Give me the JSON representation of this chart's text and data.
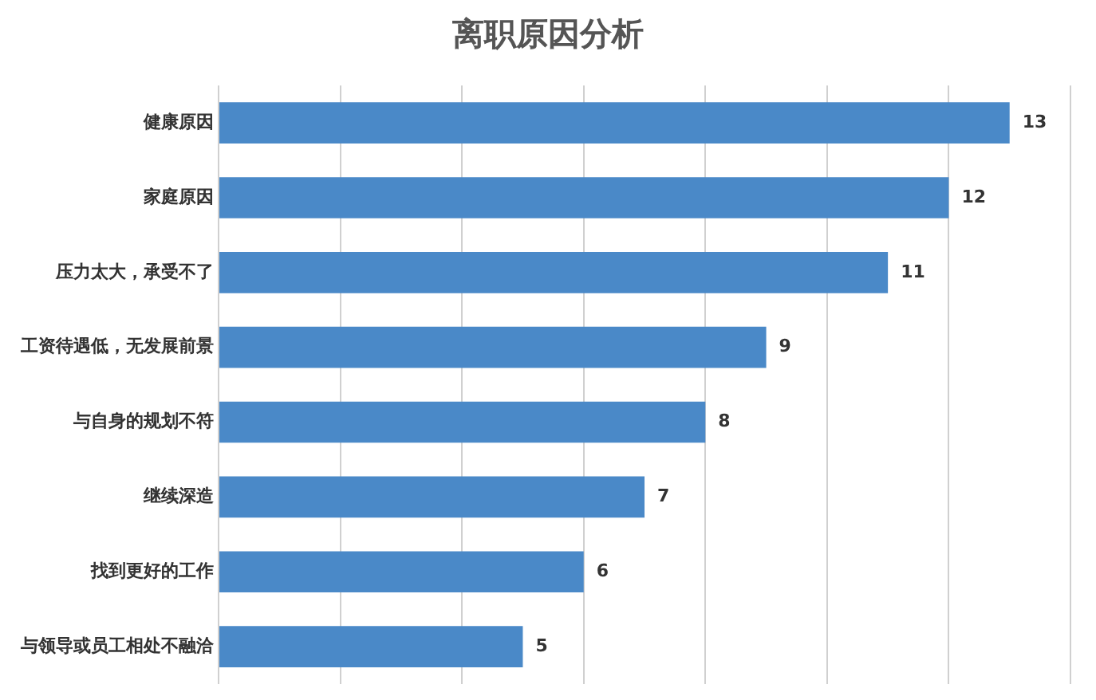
{
  "chart_data": {
    "type": "bar",
    "orientation": "horizontal",
    "title": "离职原因分析",
    "categories": [
      "健康原因",
      "家庭原因",
      "压力太大，承受不了",
      "工资待遇低，无发展前景",
      "与自身的规划不符",
      "继续深造",
      "找到更好的工作",
      "与领导或员工相处不融洽"
    ],
    "values": [
      13,
      12,
      11,
      9,
      8,
      7,
      6,
      5
    ],
    "color": "#4a89c8",
    "xlim": [
      0,
      14
    ],
    "xticks": [
      {
        "value": 0,
        "label": null
      },
      {
        "value": 2,
        "label": null
      },
      {
        "value": 4,
        "label": null
      },
      {
        "value": 6,
        "label": null
      },
      {
        "value": 8,
        "label": null
      },
      {
        "value": 10,
        "label": null
      },
      {
        "value": 12,
        "label": null
      },
      {
        "value": 14,
        "label": null
      }
    ],
    "tick_labels": "y",
    "grid": "x",
    "legend": false,
    "data_labels": true
  }
}
